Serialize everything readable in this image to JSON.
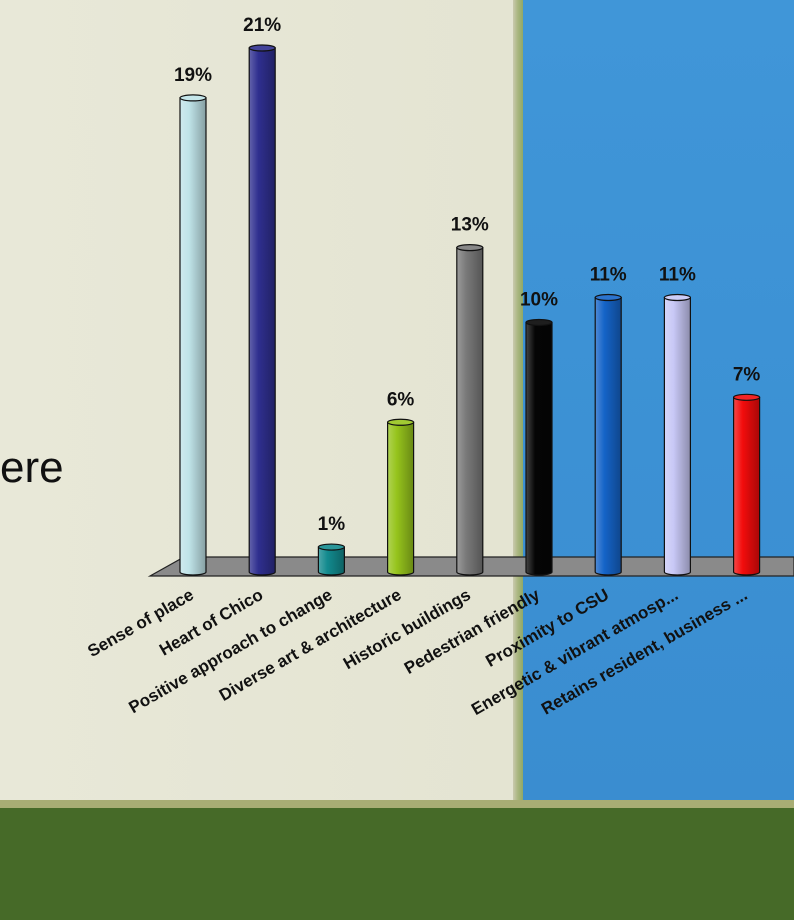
{
  "fragment_text": "ere",
  "colors": {
    "left_panel": "#e6e6d6",
    "right_panel": "#3c91d4",
    "bottom_band": "#466a28",
    "floor": "#8a8a8a"
  },
  "chart_data": {
    "type": "bar",
    "title": "",
    "xlabel": "",
    "ylabel": "",
    "ylim": [
      0,
      21
    ],
    "grid": false,
    "legend": "none",
    "categories": [
      "Sense of place",
      "Heart of Chico",
      "Positive approach to change",
      "Diverse art & architecture",
      "Historic buildings",
      "Pedestrian friendly",
      "Proximity to CSU",
      "Energetic & vibrant atmosp...",
      "Retains resident, business ..."
    ],
    "values": [
      19,
      21,
      1,
      6,
      13,
      10,
      11,
      11,
      7
    ],
    "value_labels": [
      "19%",
      "21%",
      "1%",
      "6%",
      "13%",
      "10%",
      "11%",
      "11%",
      "7%"
    ],
    "bar_colors": [
      "#bfe3e8",
      "#2f2f8f",
      "#128a8e",
      "#96c41c",
      "#7a7a7a",
      "#050505",
      "#1564c8",
      "#c8c8f6",
      "#f20c0c"
    ]
  }
}
